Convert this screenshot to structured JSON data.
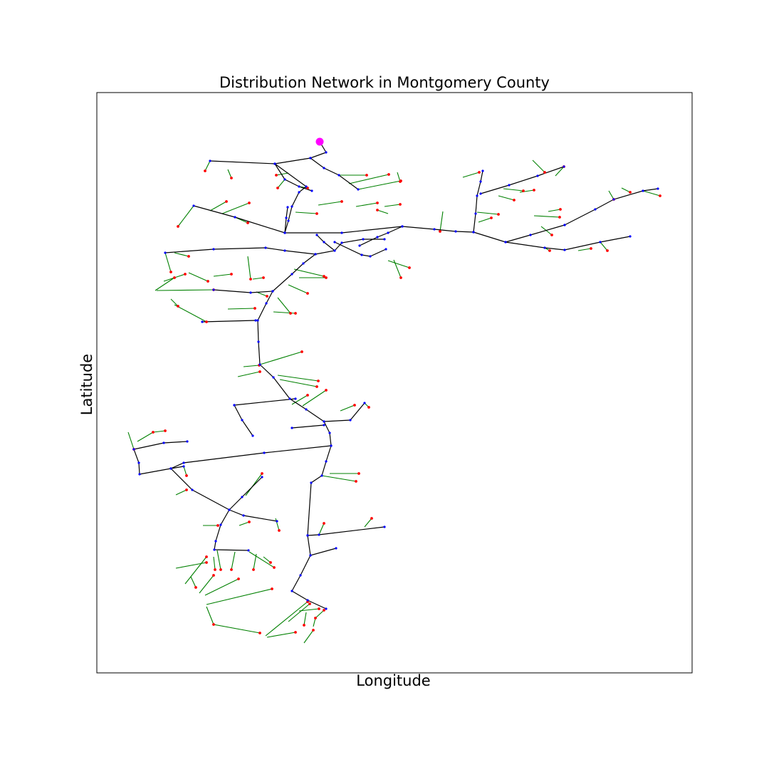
{
  "title": "Distribution Network in Montgomery County",
  "xlabel": "Longitude",
  "ylabel": "Latitude",
  "chart_data": {
    "type": "network",
    "title": "Distribution Network in Montgomery County",
    "xlabel": "Longitude",
    "ylabel": "Latitude",
    "ticks": "none",
    "grid": false,
    "colors": {
      "primary_line": "#000000",
      "secondary_line": "#008000",
      "primary_node": "#0000ff",
      "secondary_node": "#ff0000",
      "substation": "#ff00ff"
    },
    "substation": [
      449,
      199
    ]
  }
}
